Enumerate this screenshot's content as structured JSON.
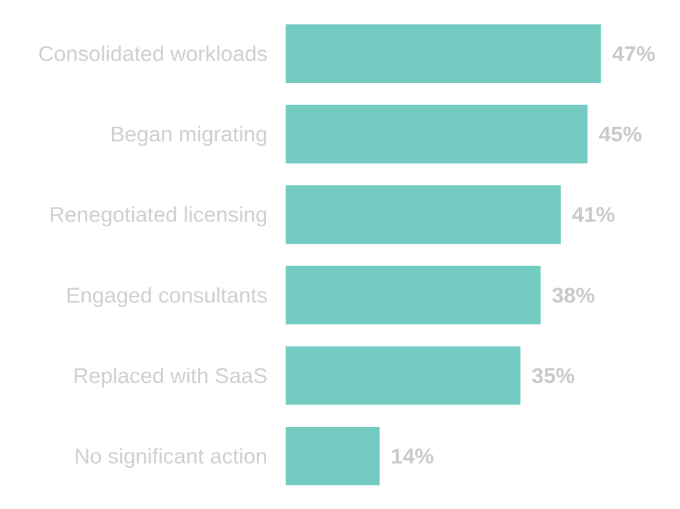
{
  "chart_data": {
    "type": "bar",
    "orientation": "horizontal",
    "categories": [
      "Consolidated workloads",
      "Began migrating",
      "Renegotiated licensing",
      "Engaged consultants",
      "Replaced with SaaS",
      "No significant action"
    ],
    "values": [
      47,
      45,
      41,
      38,
      35,
      14
    ],
    "value_labels": [
      "47%",
      "45%",
      "41%",
      "38%",
      "35%",
      "14%"
    ],
    "unit": "%",
    "title": "",
    "xlabel": "",
    "ylabel": "",
    "grid": false,
    "legend": "none",
    "colors": {
      "bar": "#74cbc2",
      "category_text": "#cfcfcf",
      "value_text": "#c9c9c9"
    }
  }
}
